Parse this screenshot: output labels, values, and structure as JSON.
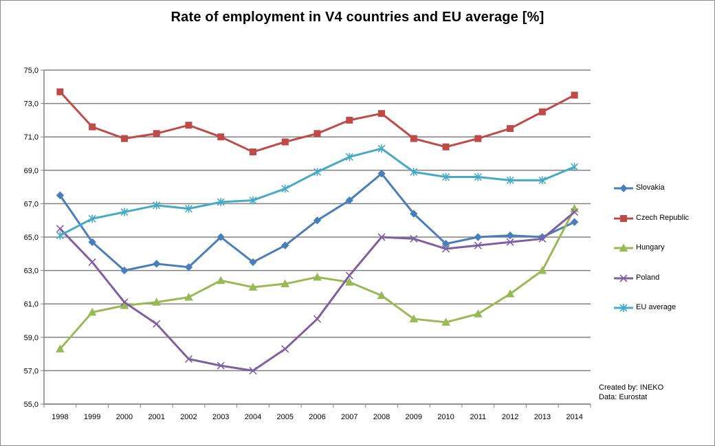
{
  "chart_data": {
    "type": "line",
    "title": "Rate of employment in V4 countries and EU average [%]",
    "xlabel": "",
    "ylabel": "",
    "ylim": [
      55,
      75
    ],
    "yticks": [
      "55,0",
      "57,0",
      "59,0",
      "61,0",
      "63,0",
      "65,0",
      "67,0",
      "69,0",
      "71,0",
      "73,0",
      "75,0"
    ],
    "categories": [
      "1998",
      "1999",
      "2000",
      "2001",
      "2002",
      "2003",
      "2004",
      "2005",
      "2006",
      "2007",
      "2008",
      "2009",
      "2010",
      "2011",
      "2012",
      "2013",
      "2014"
    ],
    "grid": true,
    "legend_position": "right",
    "series": [
      {
        "name": "Slovakia",
        "color": "#4a7ebb",
        "marker": "diamond",
        "values": [
          67.5,
          64.7,
          63.0,
          63.4,
          63.2,
          65.0,
          63.5,
          64.5,
          66.0,
          67.2,
          68.8,
          66.4,
          64.6,
          65.0,
          65.1,
          65.0,
          65.9
        ]
      },
      {
        "name": "Czech Republic",
        "color": "#be4b48",
        "marker": "square",
        "values": [
          73.7,
          71.6,
          70.9,
          71.2,
          71.7,
          71.0,
          70.1,
          70.7,
          71.2,
          72.0,
          72.4,
          70.9,
          70.4,
          70.9,
          71.5,
          72.5,
          73.5
        ]
      },
      {
        "name": "Hungary",
        "color": "#98b954",
        "marker": "triangle",
        "values": [
          58.3,
          60.5,
          60.9,
          61.1,
          61.4,
          62.4,
          62.0,
          62.2,
          62.6,
          62.3,
          61.5,
          60.1,
          59.9,
          60.4,
          61.6,
          63.0,
          66.7
        ]
      },
      {
        "name": "Poland",
        "color": "#7d60a0",
        "marker": "x",
        "values": [
          65.5,
          63.5,
          61.1,
          59.8,
          57.7,
          57.3,
          57.0,
          58.3,
          60.1,
          62.7,
          65.0,
          64.9,
          64.3,
          64.5,
          64.7,
          64.9,
          66.5
        ]
      },
      {
        "name": "EU average",
        "color": "#46aac5",
        "marker": "star",
        "values": [
          65.1,
          66.1,
          66.5,
          66.9,
          66.7,
          67.1,
          67.2,
          67.9,
          68.9,
          69.8,
          70.3,
          68.9,
          68.6,
          68.6,
          68.4,
          68.4,
          69.2
        ]
      }
    ]
  },
  "credits": {
    "created_by": "Created by:  INEKO",
    "data_source": "Data:  Eurostat"
  }
}
